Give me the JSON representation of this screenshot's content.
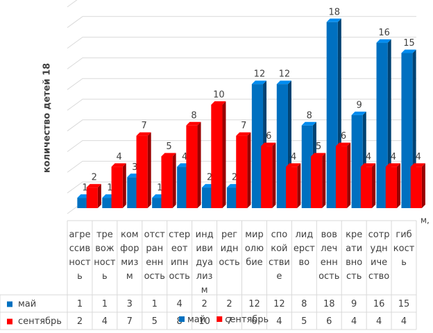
{
  "chart_data": {
    "type": "bar3d",
    "y_label": "количество детей 18",
    "x_label": "м,",
    "categories": [
      "агре\nссив\nност\nь",
      "тре\nвож\nност\nь",
      "ком\nфор\nмиз\nм",
      "отст\nран\nенн\nость",
      "стер\nеот\nипн\nость",
      "инд\nиви\nдуа\nлиз\nм",
      "рег\nидн\nость",
      "мир\nолю\nбие",
      "спо\nкой\nстви\nе",
      "лид\nерст\nво",
      "вов\nлеч\nенн\nость",
      "кре\nати\nвно\nсть",
      "сотр\nудн\nиче\nство",
      "гиб\nкост\nь"
    ],
    "series": [
      {
        "name": "май",
        "color": "#0070c0",
        "values": [
          1,
          1,
          3,
          1,
          4,
          2,
          2,
          12,
          12,
          8,
          18,
          9,
          16,
          15
        ]
      },
      {
        "name": "сентябрь",
        "color": "#ff0000",
        "values": [
          2,
          4,
          7,
          5,
          8,
          10,
          7,
          6,
          4,
          5,
          6,
          4,
          4,
          4
        ]
      }
    ],
    "ylim": [
      0,
      20
    ],
    "yticks": [
      0,
      2,
      4,
      6,
      8,
      10,
      12,
      14,
      16,
      18,
      20
    ],
    "grid": true
  }
}
